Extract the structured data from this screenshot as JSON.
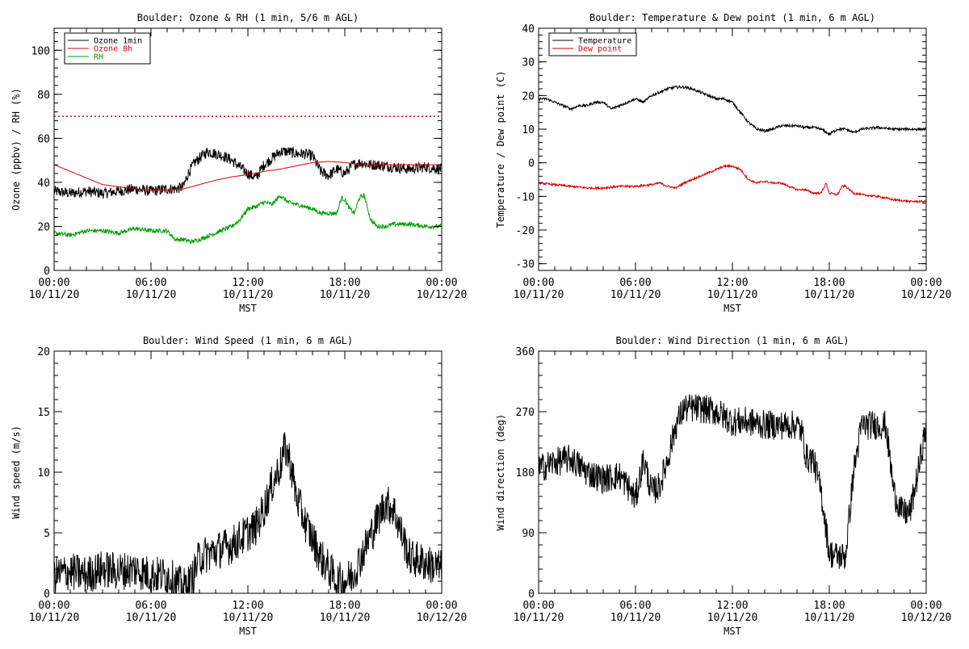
{
  "chart_data": [
    {
      "type": "line",
      "title": "Boulder: Ozone & RH (1 min, 5/6 m AGL)",
      "xlabel": "MST",
      "ylabel": "Ozone (ppbv) / RH (%)",
      "x_ticks": [
        {
          "hour": 0,
          "time": "00:00",
          "date": "10/11/20"
        },
        {
          "hour": 6,
          "time": "06:00",
          "date": "10/11/20"
        },
        {
          "hour": 12,
          "time": "12:00",
          "date": "10/11/20"
        },
        {
          "hour": 18,
          "time": "18:00",
          "date": "10/11/20"
        },
        {
          "hour": 24,
          "time": "00:00",
          "date": "10/12/20"
        }
      ],
      "xlim": [
        0,
        24
      ],
      "ylim": [
        0,
        110
      ],
      "y_ticks": [
        0,
        20,
        40,
        60,
        80,
        100
      ],
      "legend": "top-left",
      "grid": false,
      "reference_line": {
        "y": 70,
        "color": "#dd0000",
        "style": "dotted"
      },
      "series": [
        {
          "name": "Ozone 1min",
          "color": "#000000",
          "noise": 2.5,
          "x": [
            0,
            1,
            2,
            3,
            4,
            5,
            6,
            7,
            7.5,
            8,
            8.3,
            8.7,
            9,
            9.5,
            10,
            10.5,
            11,
            11.5,
            12,
            12.5,
            13,
            13.5,
            14,
            14.5,
            15,
            15.5,
            16,
            16.5,
            17,
            17.5,
            18,
            18.5,
            19,
            19.5,
            20,
            21,
            22,
            23,
            24
          ],
          "y": [
            36,
            35,
            36,
            35,
            36,
            37,
            36,
            37,
            37,
            38,
            44,
            49,
            51,
            54,
            53,
            52,
            50,
            47,
            44,
            42,
            48,
            51,
            54,
            54,
            53,
            53,
            52,
            45,
            43,
            46,
            44,
            48,
            49,
            48,
            48,
            47,
            46,
            47,
            46
          ]
        },
        {
          "name": "Ozone 8h",
          "color": "#dd0000",
          "noise": 0,
          "x": [
            0,
            1,
            2,
            3,
            4,
            5,
            6,
            7,
            8,
            9,
            10,
            11,
            12,
            13,
            14,
            15,
            16,
            17,
            18,
            19,
            20,
            21,
            22,
            23,
            24
          ],
          "y": [
            48,
            45,
            42,
            39,
            38,
            37,
            36.5,
            36.5,
            37,
            39,
            41,
            42.5,
            43.5,
            45,
            46,
            47.5,
            49,
            49.5,
            49,
            48,
            48,
            48,
            48,
            48,
            48
          ]
        },
        {
          "name": "RH",
          "color": "#00a000",
          "noise": 1,
          "x": [
            0,
            1,
            2,
            3,
            4,
            5,
            6,
            7,
            7.5,
            8,
            8.5,
            9,
            10,
            11,
            11.5,
            12,
            12.5,
            13,
            13.5,
            14,
            14.5,
            15,
            15.5,
            16,
            16.5,
            17,
            17.5,
            17.8,
            18,
            18.3,
            18.6,
            18.9,
            19.2,
            19.6,
            20,
            20.5,
            21,
            22,
            23,
            24
          ],
          "y": [
            17,
            16,
            18,
            18,
            17,
            19,
            18,
            18,
            14,
            14,
            13,
            14,
            17,
            20,
            23,
            28,
            29,
            31,
            30,
            34,
            31,
            30,
            29,
            28,
            26,
            26,
            26,
            33,
            32,
            28,
            26,
            33,
            34,
            23,
            20,
            20,
            21,
            21,
            20,
            20
          ]
        }
      ]
    },
    {
      "type": "line",
      "title": "Boulder: Temperature & Dew point (1 min, 6 m AGL)",
      "xlabel": "MST",
      "ylabel": "Temperature / Dew point (C)",
      "x_ticks": [
        {
          "hour": 0,
          "time": "00:00",
          "date": "10/11/20"
        },
        {
          "hour": 6,
          "time": "06:00",
          "date": "10/11/20"
        },
        {
          "hour": 12,
          "time": "12:00",
          "date": "10/11/20"
        },
        {
          "hour": 18,
          "time": "18:00",
          "date": "10/11/20"
        },
        {
          "hour": 24,
          "time": "00:00",
          "date": "10/12/20"
        }
      ],
      "xlim": [
        0,
        24
      ],
      "ylim": [
        -32,
        40
      ],
      "y_ticks": [
        -30,
        -20,
        -10,
        0,
        10,
        20,
        30,
        40
      ],
      "legend": "top-left",
      "grid": false,
      "series": [
        {
          "name": "Temperature",
          "color": "#000000",
          "noise": 0.4,
          "x": [
            0,
            0.5,
            1,
            1.5,
            2,
            2.5,
            3,
            3.5,
            4,
            4.5,
            5,
            5.5,
            6,
            6.5,
            7,
            7.5,
            8,
            8.5,
            9,
            9.5,
            10,
            10.5,
            11,
            11.5,
            12,
            12.5,
            13,
            13.5,
            14,
            14.5,
            15,
            15.5,
            16,
            16.5,
            17,
            17.5,
            18,
            18.5,
            19,
            19.5,
            20,
            21,
            22,
            23,
            24
          ],
          "y": [
            19,
            19,
            18,
            17,
            16,
            17,
            17,
            18,
            18,
            16,
            17,
            18,
            19,
            18,
            20,
            21,
            22,
            22.5,
            22.5,
            22,
            21,
            20,
            19,
            19,
            18,
            15,
            12,
            10,
            9.5,
            10,
            11,
            11,
            11,
            10.5,
            10.5,
            10,
            8.5,
            10,
            10,
            9,
            10,
            10.5,
            10,
            10,
            10
          ]
        },
        {
          "name": "Dew point",
          "color": "#dd0000",
          "noise": 0.3,
          "x": [
            0,
            1,
            2,
            3,
            4,
            5,
            6,
            7,
            7.5,
            8,
            8.5,
            9,
            9.5,
            10,
            10.5,
            11,
            11.5,
            12,
            12.5,
            13,
            13.5,
            14,
            14.5,
            15,
            15.5,
            16,
            16.5,
            17,
            17.5,
            17.8,
            18,
            18.5,
            18.8,
            19,
            19.5,
            20,
            21,
            22,
            23,
            24
          ],
          "y": [
            -6,
            -6.5,
            -7,
            -7.5,
            -7.5,
            -7,
            -7,
            -6.5,
            -6,
            -7,
            -7.5,
            -6,
            -5,
            -4,
            -3,
            -2,
            -1,
            -1,
            -2,
            -5,
            -6,
            -5.5,
            -6,
            -6,
            -7,
            -8,
            -8,
            -9,
            -9,
            -6,
            -9,
            -9.5,
            -7,
            -7,
            -9,
            -9.5,
            -10,
            -11,
            -11.5,
            -11.5
          ]
        }
      ]
    },
    {
      "type": "line",
      "title": "Boulder: Wind Speed (1 min, 6 m AGL)",
      "xlabel": "MST",
      "ylabel": "Wind speed (m/s)",
      "x_ticks": [
        {
          "hour": 0,
          "time": "00:00",
          "date": "10/11/20"
        },
        {
          "hour": 6,
          "time": "06:00",
          "date": "10/11/20"
        },
        {
          "hour": 12,
          "time": "12:00",
          "date": "10/11/20"
        },
        {
          "hour": 18,
          "time": "18:00",
          "date": "10/11/20"
        },
        {
          "hour": 24,
          "time": "00:00",
          "date": "10/12/20"
        }
      ],
      "xlim": [
        0,
        24
      ],
      "ylim": [
        0,
        20
      ],
      "y_ticks": [
        0,
        5,
        10,
        15,
        20
      ],
      "grid": false,
      "series": [
        {
          "name": "",
          "color": "#000000",
          "noise": 1.6,
          "x": [
            0,
            1,
            2,
            3,
            4,
            5,
            6,
            7,
            7.5,
            8,
            8.5,
            9,
            10,
            11,
            11.5,
            12,
            12.5,
            13,
            13.5,
            14,
            14.3,
            14.6,
            15,
            15.5,
            16,
            16.5,
            17,
            17.5,
            18,
            18.5,
            19,
            19.5,
            20,
            20.5,
            21,
            21.5,
            22,
            23,
            24
          ],
          "y": [
            1.5,
            1.8,
            1.5,
            2,
            1.8,
            2,
            1.5,
            1.5,
            1,
            0.5,
            1,
            3,
            3.5,
            4,
            4.5,
            5,
            5.5,
            7,
            9,
            10.5,
            12,
            11,
            8,
            6,
            4.5,
            3,
            2,
            1,
            1,
            1.5,
            3,
            4.5,
            6,
            7.5,
            7,
            5,
            3,
            2.5,
            2
          ]
        }
      ]
    },
    {
      "type": "line",
      "title": "Boulder: Wind Direction (1 min, 6 m AGL)",
      "xlabel": "MST",
      "ylabel": "Wind direction (deg)",
      "x_ticks": [
        {
          "hour": 0,
          "time": "00:00",
          "date": "10/11/20"
        },
        {
          "hour": 6,
          "time": "06:00",
          "date": "10/11/20"
        },
        {
          "hour": 12,
          "time": "12:00",
          "date": "10/11/20"
        },
        {
          "hour": 18,
          "time": "18:00",
          "date": "10/11/20"
        },
        {
          "hour": 24,
          "time": "00:00",
          "date": "10/12/20"
        }
      ],
      "xlim": [
        0,
        24
      ],
      "ylim": [
        0,
        360
      ],
      "y_ticks": [
        0,
        90,
        180,
        270,
        360
      ],
      "grid": false,
      "series": [
        {
          "name": "",
          "color": "#000000",
          "noise": 22,
          "x": [
            0,
            1,
            2,
            3,
            4,
            5,
            5.5,
            6,
            6.5,
            7,
            7.5,
            8,
            8.5,
            9,
            10,
            11,
            12,
            13,
            14,
            15,
            16,
            16.3,
            16.6,
            17,
            17.5,
            18,
            18.5,
            19,
            19.5,
            20,
            21,
            21.5,
            22,
            22.5,
            23,
            23.5,
            24
          ],
          "y": [
            185,
            195,
            200,
            180,
            170,
            175,
            160,
            140,
            200,
            150,
            160,
            200,
            250,
            275,
            275,
            270,
            255,
            255,
            250,
            250,
            250,
            240,
            200,
            200,
            150,
            60,
            55,
            55,
            180,
            250,
            250,
            250,
            150,
            120,
            120,
            180,
            250
          ]
        }
      ]
    }
  ]
}
